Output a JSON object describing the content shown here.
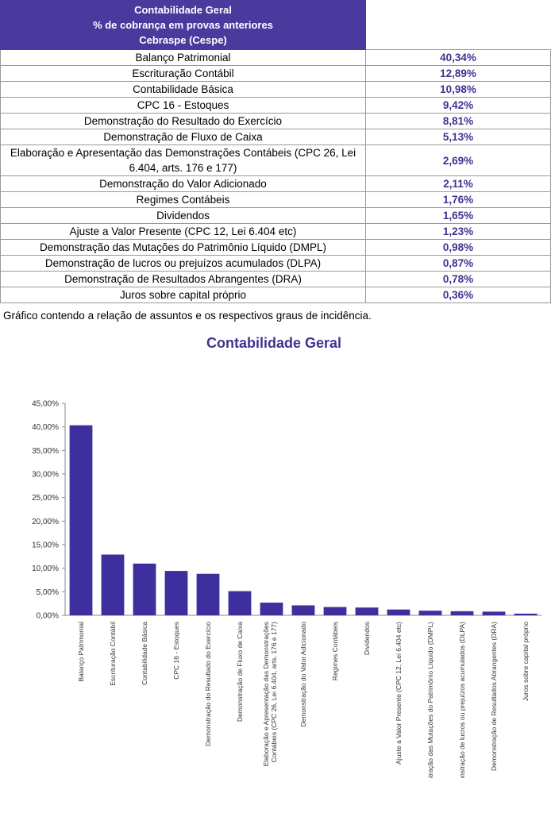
{
  "table": {
    "header": [
      "Contabilidade Geral",
      "% de cobrança em provas anteriores",
      "Cebraspe (Cespe)"
    ],
    "rows": [
      [
        "Balanço Patrimonial",
        "40,34%"
      ],
      [
        "Escrituração Contábil",
        "12,89%"
      ],
      [
        "Contabilidade Básica",
        "10,98%"
      ],
      [
        "CPC 16 - Estoques",
        "9,42%"
      ],
      [
        "Demonstração do Resultado do Exercício",
        "8,81%"
      ],
      [
        "Demonstração de Fluxo de Caixa",
        "5,13%"
      ],
      [
        "Elaboração e Apresentação das Demonstrações Contábeis (CPC 26, Lei 6.404, arts. 176 e 177)",
        "2,69%"
      ],
      [
        "Demonstração do Valor Adicionado",
        "2,11%"
      ],
      [
        "Regimes Contábeis",
        "1,76%"
      ],
      [
        "Dividendos",
        "1,65%"
      ],
      [
        "Ajuste a Valor Presente (CPC 12, Lei 6.404 etc)",
        "1,23%"
      ],
      [
        "Demonstração das Mutações do Patrimônio Líquido (DMPL)",
        "0,98%"
      ],
      [
        "Demonstração de lucros ou prejuízos acumulados (DLPA)",
        "0,87%"
      ],
      [
        "Demonstração de Resultados Abrangentes (DRA)",
        "0,78%"
      ],
      [
        "Juros sobre capital próprio",
        "0,36%"
      ]
    ]
  },
  "caption": "Gráfico contendo a relação de assuntos e os respectivos graus de incidência.",
  "chart_data": {
    "type": "bar",
    "title": "Contabilidade Geral",
    "color": "#3d2f9e",
    "categories": [
      "Balanço Patrimonial",
      "Escrituração Contábil",
      "Contabilidade Básica",
      "CPC 16 - Estoques",
      "Demonstração do Resultado do Exercício",
      "Demonstração de Fluxo de Caixa",
      "Elaboração e Apresentação das Demonstrações Contábeis (CPC 26, Lei 6.404, arts. 176 e 177)",
      "Demonstração do Valor Adicionado",
      "Regimes Contábeis",
      "Dividendos",
      "Ajuste a Valor Presente (CPC 12, Lei 6.404 etc)",
      "Demonstração das Mutações do Patrimônio Líquido (DMPL)",
      "Demonstração de lucros ou prejuízos acumulados (DLPA)",
      "Demonstração de Resultados Abrangentes (DRA)",
      "Juros sobre capital próprio"
    ],
    "values": [
      40.34,
      12.89,
      10.98,
      9.42,
      8.81,
      5.13,
      2.69,
      2.11,
      1.76,
      1.65,
      1.23,
      0.98,
      0.87,
      0.78,
      0.36
    ],
    "ylim": [
      0,
      45
    ],
    "yticks": [
      {
        "value": 0,
        "label": "0,00%"
      },
      {
        "value": 5,
        "label": "5,00%"
      },
      {
        "value": 10,
        "label": "10,00%"
      },
      {
        "value": 15,
        "label": "15,00%"
      },
      {
        "value": 20,
        "label": "20,00%"
      },
      {
        "value": 25,
        "label": "25,00%"
      },
      {
        "value": 30,
        "label": "30,00%"
      },
      {
        "value": 35,
        "label": "35,00%"
      },
      {
        "value": 40,
        "label": "40,00%"
      },
      {
        "value": 45,
        "label": "45,00%"
      }
    ]
  }
}
